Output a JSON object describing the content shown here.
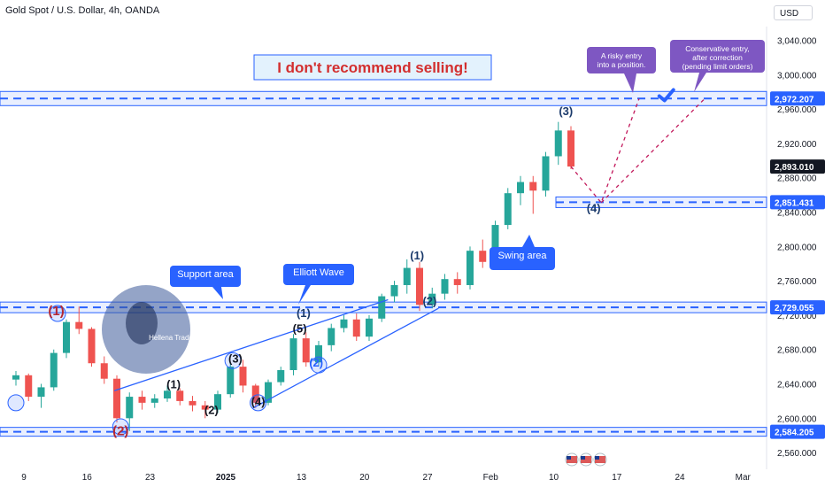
{
  "header": {
    "title": "Gold Spot / U.S. Dollar, 4h, OANDA",
    "currency": "USD"
  },
  "chart_data": {
    "type": "candlestick",
    "ylim": [
      2556,
      3056
    ],
    "y_ticks": [
      {
        "v": 3040,
        "label": "3,040.000"
      },
      {
        "v": 3000,
        "label": "3,000.000"
      },
      {
        "v": 2960,
        "label": "2,960.000"
      },
      {
        "v": 2920,
        "label": "2,920.000"
      },
      {
        "v": 2880,
        "label": "2,880.000"
      },
      {
        "v": 2840,
        "label": "2,840.000"
      },
      {
        "v": 2800,
        "label": "2,800.000"
      },
      {
        "v": 2760,
        "label": "2,760.000"
      },
      {
        "v": 2720,
        "label": "2,720.000"
      },
      {
        "v": 2680,
        "label": "2,680.000"
      },
      {
        "v": 2640,
        "label": "2,640.000"
      },
      {
        "v": 2600,
        "label": "2,600.000"
      },
      {
        "v": 2560,
        "label": "2,560.000"
      }
    ],
    "x_ticks": [
      {
        "i": 0,
        "label": "9",
        "bold": false
      },
      {
        "i": 5,
        "label": "16",
        "bold": false
      },
      {
        "i": 10,
        "label": "23",
        "bold": false
      },
      {
        "i": 16,
        "label": "2025",
        "bold": true
      },
      {
        "i": 22,
        "label": "13",
        "bold": false
      },
      {
        "i": 27,
        "label": "20",
        "bold": false
      },
      {
        "i": 32,
        "label": "27",
        "bold": false
      },
      {
        "i": 37,
        "label": "Feb",
        "bold": false
      },
      {
        "i": 42,
        "label": "10",
        "bold": false
      },
      {
        "i": 47,
        "label": "17",
        "bold": false
      },
      {
        "i": 52,
        "label": "24",
        "bold": false
      },
      {
        "i": 57,
        "label": "Mar",
        "bold": false
      }
    ],
    "price_tags": [
      {
        "v": 2972.207,
        "label": "2,972.207",
        "color": "#2962ff"
      },
      {
        "v": 2893.01,
        "label": "2,893.010",
        "color": "#131722"
      },
      {
        "v": 2851.431,
        "label": "2,851.431",
        "color": "#2962ff"
      },
      {
        "v": 2729.055,
        "label": "2,729.055",
        "color": "#2962ff"
      },
      {
        "v": 2584.205,
        "label": "2,584.205",
        "color": "#2962ff"
      }
    ],
    "levels": [
      2972.207,
      2851.431,
      2729.055,
      2584.205
    ],
    "candles": [
      [
        2645,
        2655,
        2638,
        2650
      ],
      [
        2650,
        2652,
        2620,
        2625
      ],
      [
        2625,
        2640,
        2612,
        2636
      ],
      [
        2636,
        2680,
        2632,
        2676
      ],
      [
        2676,
        2715,
        2670,
        2712
      ],
      [
        2712,
        2730,
        2698,
        2704
      ],
      [
        2704,
        2706,
        2660,
        2664
      ],
      [
        2664,
        2672,
        2640,
        2646
      ],
      [
        2646,
        2650,
        2595,
        2600
      ],
      [
        2600,
        2630,
        2585,
        2625
      ],
      [
        2625,
        2632,
        2610,
        2618
      ],
      [
        2618,
        2628,
        2612,
        2623
      ],
      [
        2623,
        2638,
        2619,
        2632
      ],
      [
        2632,
        2635,
        2615,
        2620
      ],
      [
        2620,
        2626,
        2608,
        2615
      ],
      [
        2615,
        2620,
        2600,
        2610
      ],
      [
        2610,
        2632,
        2606,
        2628
      ],
      [
        2628,
        2665,
        2624,
        2660
      ],
      [
        2660,
        2668,
        2630,
        2638
      ],
      [
        2638,
        2640,
        2612,
        2618
      ],
      [
        2618,
        2645,
        2615,
        2642
      ],
      [
        2642,
        2660,
        2638,
        2656
      ],
      [
        2656,
        2698,
        2650,
        2693
      ],
      [
        2693,
        2700,
        2660,
        2665
      ],
      [
        2665,
        2690,
        2660,
        2685
      ],
      [
        2685,
        2710,
        2678,
        2705
      ],
      [
        2705,
        2720,
        2700,
        2715
      ],
      [
        2715,
        2722,
        2690,
        2695
      ],
      [
        2695,
        2720,
        2690,
        2716
      ],
      [
        2716,
        2745,
        2712,
        2742
      ],
      [
        2742,
        2760,
        2735,
        2755
      ],
      [
        2755,
        2785,
        2745,
        2775
      ],
      [
        2775,
        2782,
        2725,
        2732
      ],
      [
        2732,
        2752,
        2728,
        2745
      ],
      [
        2745,
        2768,
        2738,
        2762
      ],
      [
        2762,
        2770,
        2745,
        2755
      ],
      [
        2755,
        2800,
        2750,
        2795
      ],
      [
        2795,
        2808,
        2775,
        2782
      ],
      [
        2782,
        2830,
        2778,
        2825
      ],
      [
        2825,
        2868,
        2820,
        2862
      ],
      [
        2862,
        2882,
        2848,
        2875
      ],
      [
        2875,
        2882,
        2838,
        2865
      ],
      [
        2865,
        2910,
        2858,
        2905
      ],
      [
        2905,
        2945,
        2895,
        2935
      ],
      [
        2935,
        2940,
        2890,
        2893
      ]
    ],
    "points": [
      {
        "label": "(1)",
        "i": 3.2,
        "v": 2720,
        "color": "#b22833"
      },
      {
        "label": "(2)",
        "i": 8.3,
        "v": 2580,
        "color": "#b22833"
      },
      {
        "label": "(1)",
        "i": 12.5,
        "v": 2635,
        "color": "#131722"
      },
      {
        "label": "(2)",
        "i": 15.5,
        "v": 2605,
        "color": "#131722"
      },
      {
        "label": "(3)",
        "i": 17.4,
        "v": 2665,
        "color": "#131722"
      },
      {
        "label": "(4)",
        "i": 19.2,
        "v": 2615,
        "color": "#131722"
      },
      {
        "label": "(5)",
        "i": 22.5,
        "v": 2700,
        "color": "#131722"
      },
      {
        "label": "(1)",
        "i": 22.8,
        "v": 2718,
        "color": "#1b3a6b"
      },
      {
        "label": "(2)",
        "i": 23.8,
        "v": 2660,
        "color": "#2962ff"
      },
      {
        "label": "(1)",
        "i": 31.8,
        "v": 2785,
        "color": "#1b3a6b"
      },
      {
        "label": "(2)",
        "i": 32.8,
        "v": 2732,
        "color": "#1b3a6b"
      },
      {
        "label": "(3)",
        "i": 43.6,
        "v": 2953,
        "color": "#1b3a6b"
      },
      {
        "label": "(4)",
        "i": 45.8,
        "v": 2840,
        "color": "#1b3a6b"
      }
    ],
    "annotations": {
      "headline": "I don't recommend selling!",
      "support": "Support area",
      "elliott": "Elliott Wave",
      "swing": "Swing area",
      "risky": "A risky entry into a position.",
      "conservative": "Conservative entry, after correction (pending limit orders)",
      "watermark": "Hellena Trade"
    },
    "colors": {
      "up": "#26a69a",
      "down": "#ef5350",
      "level": "#2962ff",
      "callout": "#2962ff",
      "callout_purple": "#7e57c2",
      "dashed_path": "#c2185b"
    }
  }
}
